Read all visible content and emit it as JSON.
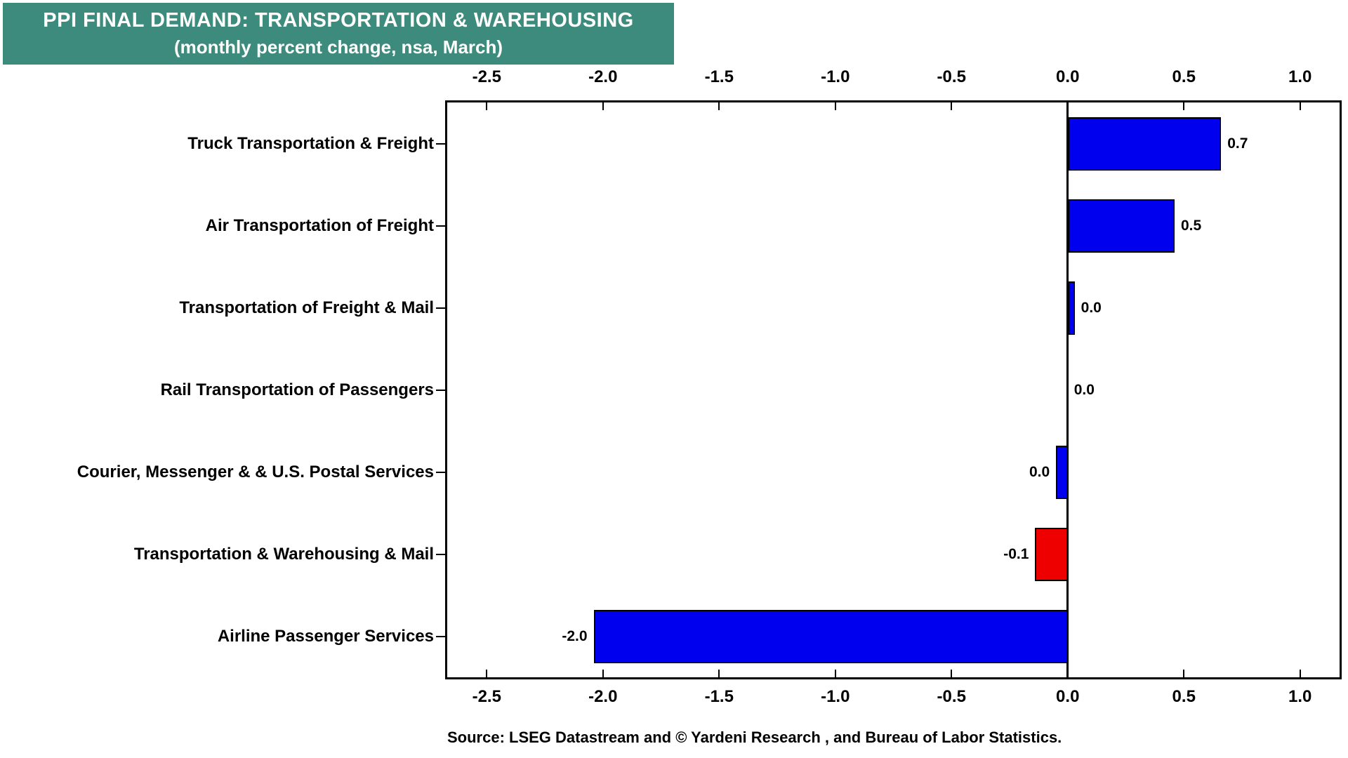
{
  "title": {
    "line1": "PPI FINAL DEMAND: TRANSPORTATION & WAREHOUSING",
    "line2": "(monthly percent change, nsa, March)"
  },
  "source": {
    "text": "Source: LSEG Datastream and © Yardeni Research , and Bureau of Labor Statistics."
  },
  "colors": {
    "header_background": "#3d8b7c",
    "header_text": "#ffffff",
    "positive_bar": "#0000ee",
    "negative_bar": "#ee0000",
    "axis": "#000000",
    "background": "#ffffff"
  },
  "chart_data": {
    "type": "bar",
    "orientation": "horizontal",
    "title": "PPI FINAL DEMAND: TRANSPORTATION & WAREHOUSING",
    "subtitle": "(monthly percent change, nsa, March)",
    "categories": [
      "Truck Transportation & Freight",
      "Air Transportation of Freight",
      "Transportation of Freight & Mail",
      "Rail Transportation of Passengers",
      "Courier, Messenger & & U.S. Postal Services",
      "Transportation & Warehousing & Mail",
      "Airline Passenger Services"
    ],
    "values": [
      0.7,
      0.5,
      0.0,
      0.0,
      0.0,
      -0.1,
      -2.0
    ],
    "value_labels": [
      "0.7",
      "0.5",
      "0.0",
      "0.0",
      "0.0",
      "-0.1",
      "-2.0"
    ],
    "bar_extents": [
      0.66,
      0.46,
      0.03,
      0.0,
      -0.05,
      -0.14,
      -2.04
    ],
    "bar_colors": [
      "#0000ee",
      "#0000ee",
      "#0000ee",
      "#0000ee",
      "#0000ee",
      "#ee0000",
      "#0000ee"
    ],
    "xlim": [
      -2.67,
      1.17
    ],
    "x_ticks": [
      "-2.5",
      "-2.0",
      "-1.5",
      "-1.0",
      "-0.5",
      "0.0",
      "0.5",
      "1.0"
    ],
    "x_tick_values": [
      -2.5,
      -2.0,
      -1.5,
      -1.0,
      -0.5,
      0.0,
      0.5,
      1.0
    ],
    "grid": false,
    "legend": false
  }
}
